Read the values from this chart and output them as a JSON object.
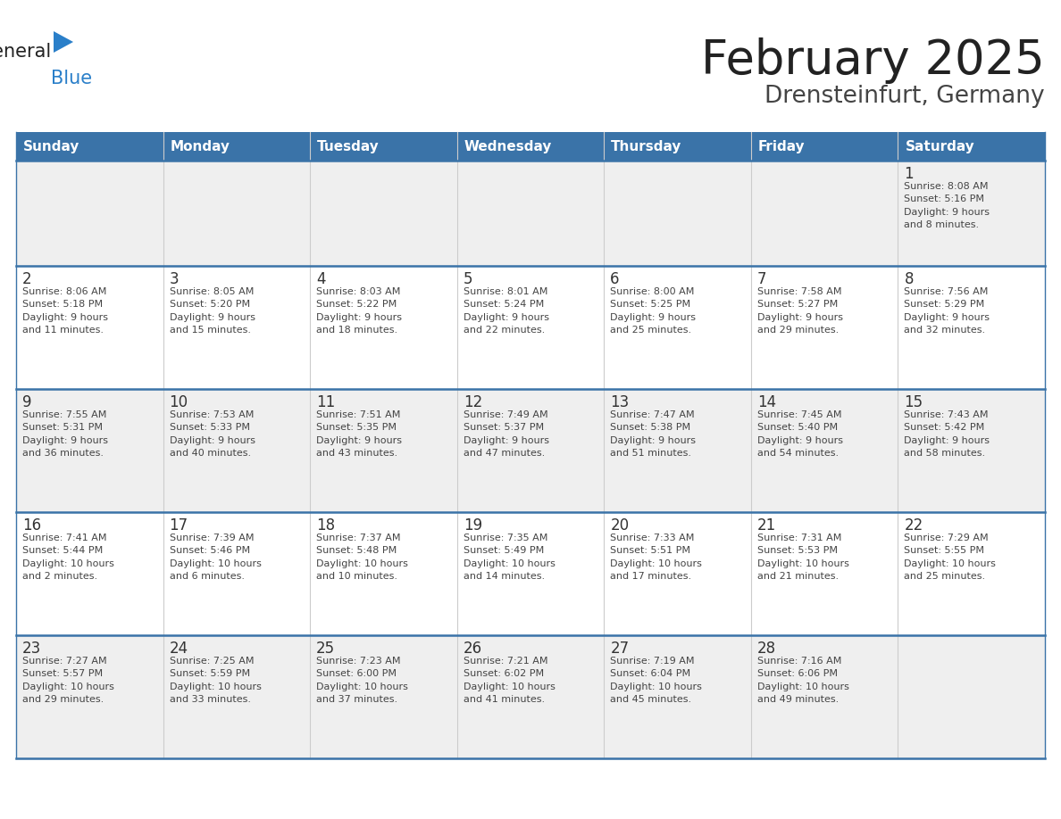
{
  "title": "February 2025",
  "subtitle": "Drensteinfurt, Germany",
  "days_of_week": [
    "Sunday",
    "Monday",
    "Tuesday",
    "Wednesday",
    "Thursday",
    "Friday",
    "Saturday"
  ],
  "header_bg": "#3a73a8",
  "header_text": "#ffffff",
  "row0_bg": "#efefef",
  "row1_bg": "#ffffff",
  "row2_bg": "#efefef",
  "row3_bg": "#ffffff",
  "row4_bg": "#efefef",
  "cell_text_color": "#444444",
  "day_num_color": "#333333",
  "border_color": "#3a73a8",
  "cell_border_color": "#cccccc",
  "title_color": "#222222",
  "subtitle_color": "#444444",
  "logo_general_color": "#222222",
  "logo_blue_color": "#2a7fc9",
  "logo_triangle_color": "#2a7fc9",
  "weeks": [
    [
      {
        "day": null,
        "info": null
      },
      {
        "day": null,
        "info": null
      },
      {
        "day": null,
        "info": null
      },
      {
        "day": null,
        "info": null
      },
      {
        "day": null,
        "info": null
      },
      {
        "day": null,
        "info": null
      },
      {
        "day": 1,
        "info": "Sunrise: 8:08 AM\nSunset: 5:16 PM\nDaylight: 9 hours\nand 8 minutes."
      }
    ],
    [
      {
        "day": 2,
        "info": "Sunrise: 8:06 AM\nSunset: 5:18 PM\nDaylight: 9 hours\nand 11 minutes."
      },
      {
        "day": 3,
        "info": "Sunrise: 8:05 AM\nSunset: 5:20 PM\nDaylight: 9 hours\nand 15 minutes."
      },
      {
        "day": 4,
        "info": "Sunrise: 8:03 AM\nSunset: 5:22 PM\nDaylight: 9 hours\nand 18 minutes."
      },
      {
        "day": 5,
        "info": "Sunrise: 8:01 AM\nSunset: 5:24 PM\nDaylight: 9 hours\nand 22 minutes."
      },
      {
        "day": 6,
        "info": "Sunrise: 8:00 AM\nSunset: 5:25 PM\nDaylight: 9 hours\nand 25 minutes."
      },
      {
        "day": 7,
        "info": "Sunrise: 7:58 AM\nSunset: 5:27 PM\nDaylight: 9 hours\nand 29 minutes."
      },
      {
        "day": 8,
        "info": "Sunrise: 7:56 AM\nSunset: 5:29 PM\nDaylight: 9 hours\nand 32 minutes."
      }
    ],
    [
      {
        "day": 9,
        "info": "Sunrise: 7:55 AM\nSunset: 5:31 PM\nDaylight: 9 hours\nand 36 minutes."
      },
      {
        "day": 10,
        "info": "Sunrise: 7:53 AM\nSunset: 5:33 PM\nDaylight: 9 hours\nand 40 minutes."
      },
      {
        "day": 11,
        "info": "Sunrise: 7:51 AM\nSunset: 5:35 PM\nDaylight: 9 hours\nand 43 minutes."
      },
      {
        "day": 12,
        "info": "Sunrise: 7:49 AM\nSunset: 5:37 PM\nDaylight: 9 hours\nand 47 minutes."
      },
      {
        "day": 13,
        "info": "Sunrise: 7:47 AM\nSunset: 5:38 PM\nDaylight: 9 hours\nand 51 minutes."
      },
      {
        "day": 14,
        "info": "Sunrise: 7:45 AM\nSunset: 5:40 PM\nDaylight: 9 hours\nand 54 minutes."
      },
      {
        "day": 15,
        "info": "Sunrise: 7:43 AM\nSunset: 5:42 PM\nDaylight: 9 hours\nand 58 minutes."
      }
    ],
    [
      {
        "day": 16,
        "info": "Sunrise: 7:41 AM\nSunset: 5:44 PM\nDaylight: 10 hours\nand 2 minutes."
      },
      {
        "day": 17,
        "info": "Sunrise: 7:39 AM\nSunset: 5:46 PM\nDaylight: 10 hours\nand 6 minutes."
      },
      {
        "day": 18,
        "info": "Sunrise: 7:37 AM\nSunset: 5:48 PM\nDaylight: 10 hours\nand 10 minutes."
      },
      {
        "day": 19,
        "info": "Sunrise: 7:35 AM\nSunset: 5:49 PM\nDaylight: 10 hours\nand 14 minutes."
      },
      {
        "day": 20,
        "info": "Sunrise: 7:33 AM\nSunset: 5:51 PM\nDaylight: 10 hours\nand 17 minutes."
      },
      {
        "day": 21,
        "info": "Sunrise: 7:31 AM\nSunset: 5:53 PM\nDaylight: 10 hours\nand 21 minutes."
      },
      {
        "day": 22,
        "info": "Sunrise: 7:29 AM\nSunset: 5:55 PM\nDaylight: 10 hours\nand 25 minutes."
      }
    ],
    [
      {
        "day": 23,
        "info": "Sunrise: 7:27 AM\nSunset: 5:57 PM\nDaylight: 10 hours\nand 29 minutes."
      },
      {
        "day": 24,
        "info": "Sunrise: 7:25 AM\nSunset: 5:59 PM\nDaylight: 10 hours\nand 33 minutes."
      },
      {
        "day": 25,
        "info": "Sunrise: 7:23 AM\nSunset: 6:00 PM\nDaylight: 10 hours\nand 37 minutes."
      },
      {
        "day": 26,
        "info": "Sunrise: 7:21 AM\nSunset: 6:02 PM\nDaylight: 10 hours\nand 41 minutes."
      },
      {
        "day": 27,
        "info": "Sunrise: 7:19 AM\nSunset: 6:04 PM\nDaylight: 10 hours\nand 45 minutes."
      },
      {
        "day": 28,
        "info": "Sunrise: 7:16 AM\nSunset: 6:06 PM\nDaylight: 10 hours\nand 49 minutes."
      },
      {
        "day": null,
        "info": null
      }
    ]
  ]
}
